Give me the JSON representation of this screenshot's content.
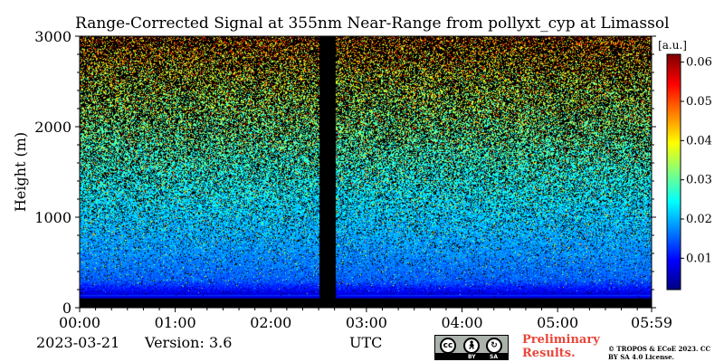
{
  "chart_data": {
    "type": "heatmap",
    "title": "Range-Corrected Signal at 355nm Near-Range from pollyxt_cyp at Limassol",
    "xlabel": "UTC",
    "ylabel": "Height (m)",
    "x_ticks": [
      "00:00",
      "01:00",
      "02:00",
      "03:00",
      "04:00",
      "05:00",
      "05:59"
    ],
    "x_tick_hours": [
      0,
      1,
      2,
      3,
      4,
      5,
      5.983
    ],
    "xlim_hours": [
      0,
      5.983
    ],
    "y_ticks": [
      0,
      1000,
      2000,
      3000
    ],
    "ylim": [
      0,
      3000
    ],
    "colorbar": {
      "unit": "[a.u.]",
      "ticks": [
        0.01,
        0.02,
        0.03,
        0.04,
        0.05,
        0.06
      ],
      "range": [
        0.002,
        0.062
      ],
      "colormap": "jet"
    },
    "data_gaps": [
      {
        "from_hour": 2.5,
        "to_hour": 2.67,
        "description": "no data"
      }
    ],
    "lowest_valid_height_m": 100,
    "signal_profile": {
      "heights_m": [
        100,
        300,
        600,
        1000,
        1500,
        2000,
        2500,
        3000
      ],
      "typical_values": [
        0.005,
        0.015,
        0.018,
        0.021,
        0.025,
        0.03,
        0.035,
        0.045
      ],
      "noise_fraction": [
        0.0,
        0.05,
        0.1,
        0.2,
        0.35,
        0.5,
        0.6,
        0.68
      ]
    }
  },
  "footer": {
    "date": "2023-03-21",
    "version": "Version: 3.6",
    "preliminary": "Preliminary Results.",
    "copyright": "© TROPOS & ECoE 2023. CC BY SA 4.0 License.",
    "license_badge": {
      "labels": [
        "BY",
        "SA"
      ],
      "icons": [
        "cc-icon",
        "person-icon",
        "share-alike-icon"
      ]
    }
  }
}
